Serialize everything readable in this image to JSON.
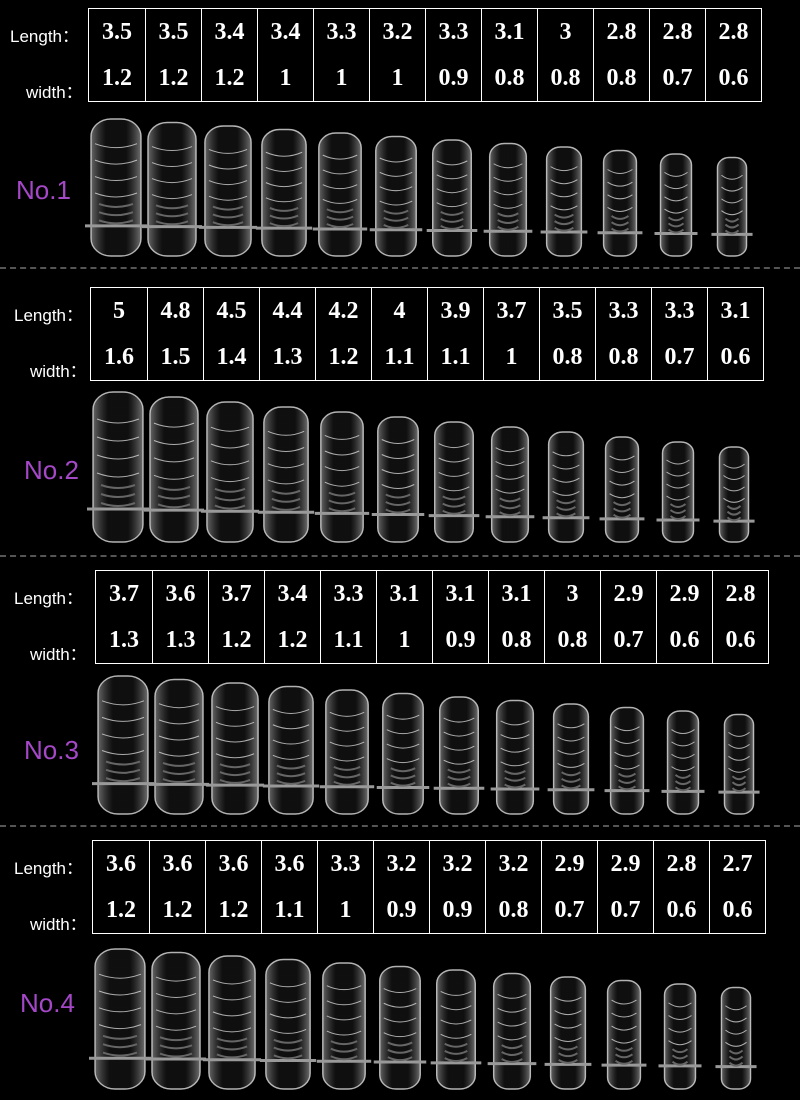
{
  "sections": [
    {
      "label": "No.1",
      "length_label": "Length：",
      "width_label": "width：",
      "lengths": [
        3.5,
        3.5,
        3.4,
        3.4,
        3.3,
        3.2,
        3.3,
        3.1,
        3,
        2.8,
        2.8,
        2.8
      ],
      "widths": [
        1.2,
        1.2,
        1.2,
        1,
        1,
        1,
        0.9,
        0.8,
        0.8,
        0.8,
        0.7,
        0.6
      ]
    },
    {
      "label": "No.2",
      "length_label": "Length：",
      "width_label": "width：",
      "lengths": [
        5,
        4.8,
        4.5,
        4.4,
        4.2,
        4,
        3.9,
        3.7,
        3.5,
        3.3,
        3.3,
        3.1
      ],
      "widths": [
        1.6,
        1.5,
        1.4,
        1.3,
        1.2,
        1.1,
        1.1,
        1,
        0.8,
        0.8,
        0.7,
        0.6
      ]
    },
    {
      "label": "No.3",
      "length_label": "Length：",
      "width_label": "width：",
      "lengths": [
        3.7,
        3.6,
        3.7,
        3.4,
        3.3,
        3.1,
        3.1,
        3.1,
        3,
        2.9,
        2.9,
        2.8
      ],
      "widths": [
        1.3,
        1.3,
        1.2,
        1.2,
        1.1,
        1,
        0.9,
        0.8,
        0.8,
        0.7,
        0.6,
        0.6
      ]
    },
    {
      "label": "No.4",
      "length_label": "Length：",
      "width_label": "width：",
      "lengths": [
        3.6,
        3.6,
        3.6,
        3.6,
        3.3,
        3.2,
        3.2,
        3.2,
        2.9,
        2.9,
        2.8,
        2.7
      ],
      "widths": [
        1.2,
        1.2,
        1.2,
        1.1,
        1,
        0.9,
        0.9,
        0.8,
        0.7,
        0.7,
        0.6,
        0.6
      ]
    }
  ]
}
